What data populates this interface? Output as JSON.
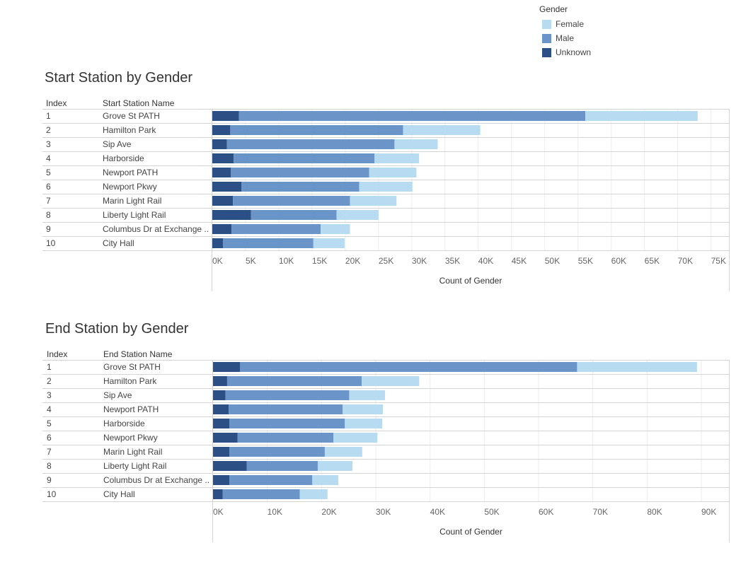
{
  "colors": {
    "Female": "#b7dcf2",
    "Male": "#6b95c8",
    "Unknown": "#2c4f86"
  },
  "legend": {
    "title": "Gender",
    "items": [
      {
        "label": "Female",
        "color": "#b7dcf2"
      },
      {
        "label": "Male",
        "color": "#6b95c8"
      },
      {
        "label": "Unknown",
        "color": "#2c4f86"
      }
    ]
  },
  "chart_data": [
    {
      "type": "bar",
      "orientation": "horizontal",
      "stacked": true,
      "title": "Start Station by Gender",
      "index_header": "Index",
      "name_header": "Start Station Name",
      "xlabel": "Count of Gender",
      "xlim": [
        0,
        76000
      ],
      "xticks": [
        0,
        5000,
        10000,
        15000,
        20000,
        25000,
        30000,
        35000,
        40000,
        45000,
        50000,
        55000,
        60000,
        65000,
        70000,
        75000
      ],
      "xtick_labels": [
        "0K",
        "5K",
        "10K",
        "15K",
        "20K",
        "25K",
        "30K",
        "35K",
        "40K",
        "45K",
        "50K",
        "55K",
        "60K",
        "65K",
        "70K",
        "75K"
      ],
      "index": [
        "1",
        "2",
        "3",
        "4",
        "5",
        "6",
        "7",
        "8",
        "9",
        "10"
      ],
      "categories": [
        "Grove St PATH",
        "Hamilton Park",
        "Sip Ave",
        "Harborside",
        "Newport PATH",
        "Newport Pkwy",
        "Marin Light Rail",
        "Liberty Light Rail",
        "Columbus Dr at Exchange ..",
        "City Hall"
      ],
      "series": [
        {
          "name": "Unknown",
          "values": [
            4000,
            2700,
            2200,
            3200,
            2800,
            4400,
            3100,
            5800,
            2900,
            1600
          ]
        },
        {
          "name": "Male",
          "values": [
            52100,
            26000,
            25200,
            21200,
            20800,
            17700,
            17600,
            12900,
            13400,
            13600
          ]
        },
        {
          "name": "Female",
          "values": [
            16900,
            11600,
            6500,
            6700,
            7100,
            8000,
            7000,
            6300,
            4400,
            4700
          ]
        }
      ]
    },
    {
      "type": "bar",
      "orientation": "horizontal",
      "stacked": true,
      "title": "End Station by Gender",
      "index_header": "Index",
      "name_header": "End Station Name",
      "xlabel": "Count of Gender",
      "xlim": [
        0,
        93000
      ],
      "xticks": [
        0,
        10000,
        20000,
        30000,
        40000,
        50000,
        60000,
        70000,
        80000,
        90000
      ],
      "xtick_labels": [
        "0K",
        "10K",
        "20K",
        "30K",
        "40K",
        "50K",
        "60K",
        "70K",
        "80K",
        "90K"
      ],
      "index": [
        "1",
        "2",
        "3",
        "4",
        "5",
        "6",
        "7",
        "8",
        "9",
        "10"
      ],
      "categories": [
        "Grove St PATH",
        "Hamilton Park",
        "Sip Ave",
        "Newport PATH",
        "Harborside",
        "Newport Pkwy",
        "Marin Light Rail",
        "Liberty Light Rail",
        "Columbus Dr at Exchange ..",
        "City Hall"
      ],
      "series": [
        {
          "name": "Unknown",
          "values": [
            5000,
            2600,
            2300,
            2900,
            3000,
            4500,
            3000,
            6200,
            3000,
            1800
          ]
        },
        {
          "name": "Male",
          "values": [
            62100,
            24800,
            22800,
            21000,
            21300,
            17700,
            17600,
            13100,
            15300,
            14200
          ]
        },
        {
          "name": "Female",
          "values": [
            22100,
            10600,
            6600,
            7400,
            6900,
            8100,
            6900,
            6400,
            4800,
            5100
          ]
        }
      ]
    }
  ]
}
